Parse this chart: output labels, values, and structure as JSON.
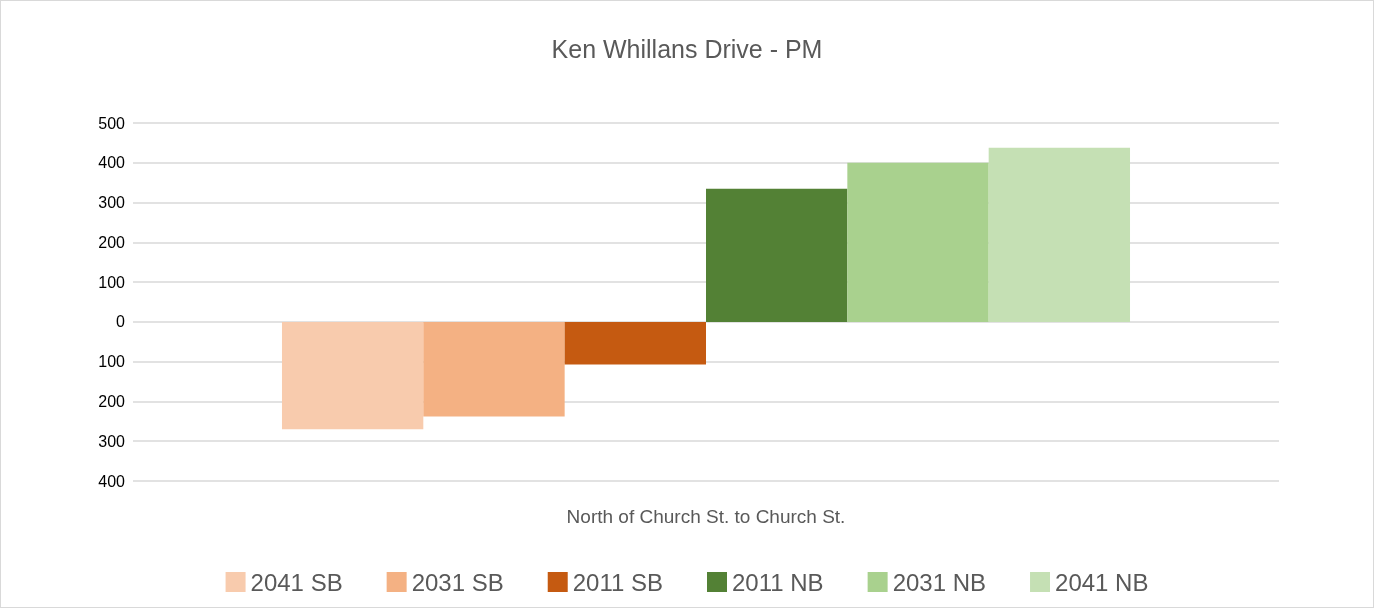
{
  "chart_data": {
    "type": "bar",
    "title": "Ken Whillans Drive - PM",
    "categories": [
      "North of Church St. to Church St."
    ],
    "series": [
      {
        "name": "2041 SB",
        "color": "#f8cbad",
        "values": [
          -270
        ]
      },
      {
        "name": "2031 SB",
        "color": "#f4b183",
        "values": [
          -238
        ]
      },
      {
        "name": "2011 SB",
        "color": "#c55a11",
        "values": [
          -107
        ]
      },
      {
        "name": "2011 NB",
        "color": "#538135",
        "values": [
          335
        ]
      },
      {
        "name": "2031 NB",
        "color": "#a9d18e",
        "values": [
          400
        ]
      },
      {
        "name": "2041 NB",
        "color": "#c5e0b4",
        "values": [
          438
        ]
      }
    ],
    "ylim": [
      -400,
      500
    ],
    "yticks": [
      {
        "value": -400,
        "label": "400"
      },
      {
        "value": -300,
        "label": "300"
      },
      {
        "value": -200,
        "label": "200"
      },
      {
        "value": -100,
        "label": "100"
      },
      0,
      100,
      200,
      300,
      400,
      500
    ],
    "grid": "y",
    "legend": "bottom"
  }
}
